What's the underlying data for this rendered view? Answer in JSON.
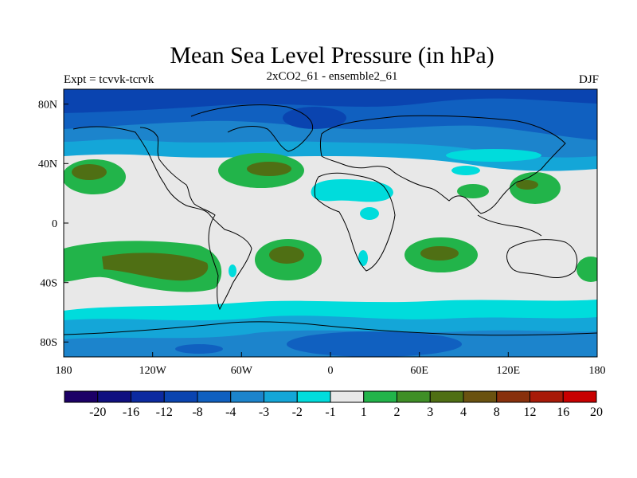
{
  "title": "Mean Sea Level Pressure (in hPa)",
  "subtitle_left": "Expt = tcvvk-tcrvk",
  "subtitle_center": "2xCO2_61 - ensemble2_61",
  "subtitle_right": "DJF",
  "x_tick_labels": [
    "180",
    "120W",
    "60W",
    "0",
    "60E",
    "120E",
    "180"
  ],
  "y_tick_labels": [
    "80N",
    "40N",
    "0",
    "40S",
    "80S"
  ],
  "colorbar_labels": [
    "-20",
    "-16",
    "-12",
    "-8",
    "-4",
    "-3",
    "-2",
    "-1",
    "1",
    "2",
    "3",
    "4",
    "8",
    "12",
    "16",
    "20"
  ],
  "colorbar_colors": [
    "#1c0066",
    "#101080",
    "#0c2aa0",
    "#0a44b0",
    "#1060c0",
    "#1c84cc",
    "#14a6d8",
    "#00dcdc",
    "#e8e8e8",
    "#22b44a",
    "#3f8f26",
    "#4f6f14",
    "#6a5210",
    "#88300c",
    "#a81a08",
    "#c80000"
  ],
  "map_data": {
    "type": "filled-contour-map",
    "projection": "cylindrical-equidistant",
    "lon_range": [
      -180,
      180
    ],
    "lat_range": [
      -90,
      90
    ],
    "background_class": "-1 to 1",
    "regions": [
      {
        "name": "arctic-low",
        "class": "-8 to -4",
        "lon_center": -20,
        "lat_center": 72
      },
      {
        "name": "north-pacific-high",
        "class": "2 to 3",
        "lon_center": -170,
        "lat_center": 30
      },
      {
        "name": "north-atlantic-high",
        "class": "3 to 4",
        "lon_center": -35,
        "lat_center": 35
      },
      {
        "name": "west-pacific-high",
        "class": "2 to 3",
        "lon_center": 150,
        "lat_center": 25
      },
      {
        "name": "south-pacific-high",
        "class": "3 to 4",
        "lon_center": -130,
        "lat_center": -25
      },
      {
        "name": "south-atlantic-high",
        "class": "3 to 4",
        "lon_center": -22,
        "lat_center": -22
      },
      {
        "name": "south-indian-high",
        "class": "3 to 4",
        "lon_center": 75,
        "lat_center": -20
      },
      {
        "name": "north-africa-low",
        "class": "-2 to -1",
        "lon_center": 15,
        "lat_center": 22
      },
      {
        "name": "southern-ocean-low",
        "class": "-3 to -2",
        "lon_center": 0,
        "lat_center": -62
      },
      {
        "name": "antarctic-low",
        "class": "-4 to -3",
        "lon_center": 40,
        "lat_center": -80
      }
    ]
  }
}
